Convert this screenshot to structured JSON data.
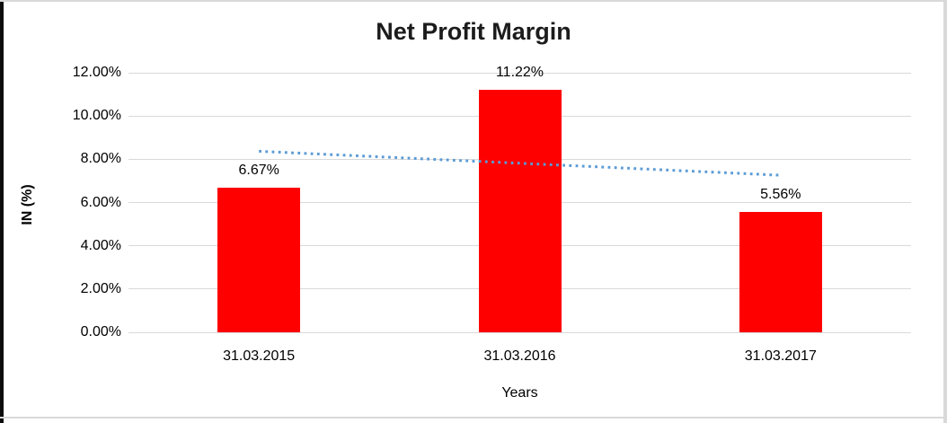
{
  "chart_data": {
    "type": "bar",
    "title": "Net Profit Margin",
    "xlabel": "Years",
    "ylabel": "IN (%)",
    "categories": [
      "31.03.2015",
      "31.03.2016",
      "31.03.2017"
    ],
    "values": [
      6.67,
      11.22,
      5.56
    ],
    "value_labels": [
      "6.67%",
      "11.22%",
      "5.56%"
    ],
    "ylim": [
      0,
      12
    ],
    "ytick_values": [
      0,
      2,
      4,
      6,
      8,
      10,
      12
    ],
    "ytick_labels": [
      "0.00%",
      "2.00%",
      "4.00%",
      "6.00%",
      "8.00%",
      "10.00%",
      "12.00%"
    ],
    "grid": true,
    "legend": "none",
    "trendline": {
      "type": "linear",
      "style": "dotted",
      "start_value": 8.37,
      "end_value": 7.26
    }
  },
  "colors": {
    "bar": "#FE0000",
    "trendline": "#5B9BD5",
    "gridline": "#D9D9D9",
    "title_text": "#1C1C1C",
    "axis_text": "#000000",
    "frame_border_dark": "#0D0D0D",
    "frame_border_light": "#D9D9D9",
    "background": "#FFFFFF"
  }
}
